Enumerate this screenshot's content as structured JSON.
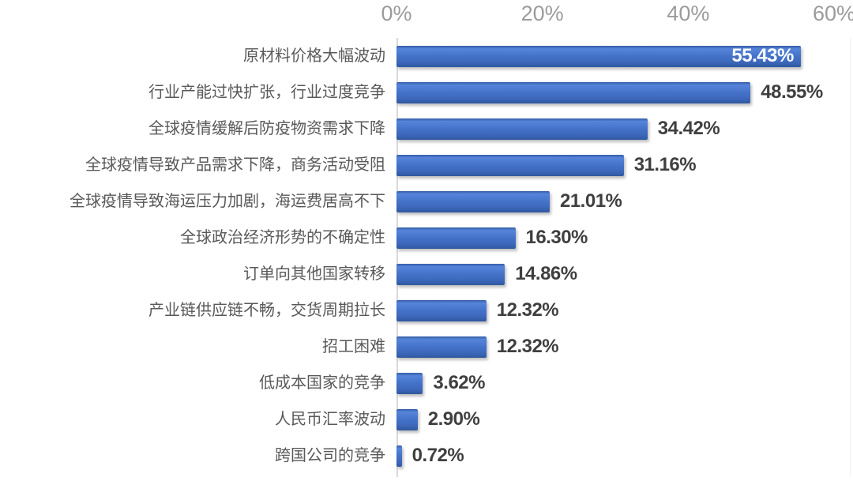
{
  "chart_data": {
    "type": "bar",
    "orientation": "horizontal",
    "title": "",
    "xlabel": "",
    "ylabel": "",
    "categories": [
      "原材料价格大幅波动",
      "行业产能过快扩张，行业过度竞争",
      "全球疫情缓解后防疫物资需求下降",
      "全球疫情导致产品需求下降，商务活动受阻",
      "全球疫情导致海运压力加剧，海运费居高不下",
      "全球政治经济形势的不确定性",
      "订单向其他国家转移",
      "产业链供应链不畅，交货周期拉长",
      "招工困难",
      "低成本国家的竞争",
      "人民币汇率波动",
      "跨国公司的竞争"
    ],
    "values": [
      55.43,
      48.55,
      34.42,
      31.16,
      21.01,
      16.3,
      14.86,
      12.32,
      12.32,
      3.62,
      2.9,
      0.72
    ],
    "value_labels": [
      "55.43%",
      "48.55%",
      "34.42%",
      "31.16%",
      "21.01%",
      "16.30%",
      "14.86%",
      "12.32%",
      "12.32%",
      "3.62%",
      "2.90%",
      "0.72%"
    ],
    "first_value_label_inside_bar": true,
    "x_ticks": [
      "0%",
      "20%",
      "40%",
      "60%"
    ],
    "x_tick_values": [
      0,
      20,
      40,
      60
    ],
    "xlim": [
      0,
      60
    ],
    "grid": false,
    "legend": "none",
    "colors": {
      "bar": "#4472C4",
      "bar_gradient_top": "#5584da",
      "bar_gradient_bottom": "#30589f",
      "value_label": "#3f3f3f",
      "value_label_inside": "#ffffff",
      "category_label": "#595959",
      "tick_label": "#9b9b9b",
      "axis_line": "#d9d9d9"
    }
  }
}
